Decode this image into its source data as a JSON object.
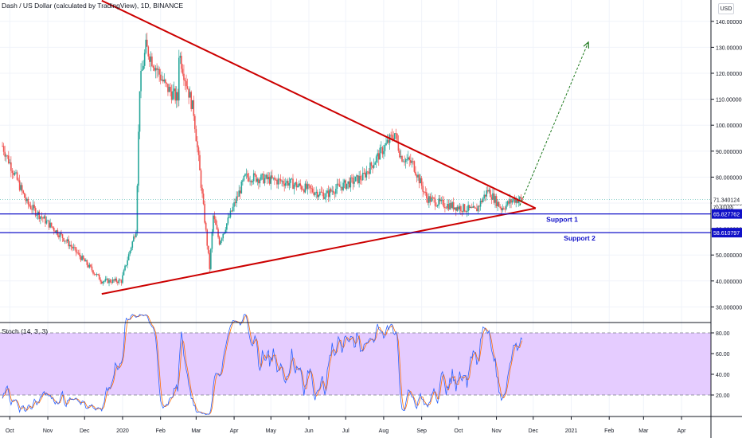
{
  "header": {
    "title": "Dash / US Dollar (calculated by TradingView), 1D, BINANCE",
    "currency_button": "USD"
  },
  "colors": {
    "up": "#26a69a",
    "down": "#ef5350",
    "triangle": "#cc0000",
    "support": "#1010c8",
    "arrow": "#1f7a1f",
    "stoch_band": "#e5ccff",
    "stoch_k": "#2962ff",
    "stoch_d": "#ff6d00"
  },
  "stoch": {
    "title": "Stoch (14, 3, 3)",
    "ticks": [
      "80.00",
      "60.00",
      "40.00",
      "20.00"
    ],
    "tick_values": [
      80,
      60,
      40,
      20
    ],
    "upper_band": 80,
    "lower_band": 20
  },
  "price_axis": {
    "ticks": [
      "140.000000",
      "130.000000",
      "120.000000",
      "110.000000",
      "100.000000",
      "90.000000",
      "80.000000",
      "70.000000",
      "60.000000",
      "50.000000",
      "40.000000",
      "30.000000"
    ],
    "last_price_label": "71.340124",
    "last_price_label2": "70.40165"
  },
  "supports": [
    {
      "name": "Support 1",
      "price_label": "65.827762",
      "value": 65.827762
    },
    {
      "name": "Support 2",
      "price_label": "58.610797",
      "value": 58.610797
    }
  ],
  "time_axis": [
    "Oct",
    "Nov",
    "Dec",
    "2020",
    "Feb",
    "Mar",
    "Apr",
    "May",
    "Jun",
    "Jul",
    "Aug",
    "Sep",
    "Oct",
    "Nov",
    "Dec",
    "2021",
    "Feb",
    "Mar",
    "Apr"
  ],
  "chart_data": {
    "type": "candlestick",
    "symbol": "DASH/USD",
    "interval": "1D",
    "ylim": [
      25,
      148
    ],
    "ylabel": "",
    "xlabel": "",
    "x_start": "2019-09-23",
    "x_end": "2021-04-25",
    "grid": true,
    "closes_by_month": [
      {
        "month": "2019-09",
        "close": 85
      },
      {
        "month": "2019-10",
        "close": 70
      },
      {
        "month": "2019-11",
        "close": 56
      },
      {
        "month": "2019-12",
        "close": 40
      },
      {
        "month": "2020-01",
        "close": 115
      },
      {
        "month": "2020-02",
        "close": 110
      },
      {
        "month": "2020-03",
        "close": 65
      },
      {
        "month": "2020-04",
        "close": 80
      },
      {
        "month": "2020-05",
        "close": 78
      },
      {
        "month": "2020-06",
        "close": 73
      },
      {
        "month": "2020-07",
        "close": 80
      },
      {
        "month": "2020-08",
        "close": 88
      },
      {
        "month": "2020-09",
        "close": 70
      },
      {
        "month": "2020-10",
        "close": 67
      },
      {
        "month": "2020-11",
        "close": 71.34
      }
    ],
    "price_range_shown": {
      "high": 145,
      "low": 31
    },
    "last_price": 71.340124,
    "triangle": {
      "upper_line": [
        {
          "date": "2019-12-15",
          "price": 148
        },
        {
          "date": "2020-12-03",
          "price": 68
        }
      ],
      "lower_line": [
        {
          "date": "2019-12-15",
          "price": 35
        },
        {
          "date": "2020-12-03",
          "price": 68
        }
      ]
    },
    "support_levels": [
      65.827762,
      58.610797
    ],
    "projection_arrow": {
      "from": {
        "date": "2020-11-20",
        "price": 69
      },
      "to": {
        "date": "2021-01-15",
        "price": 132
      }
    }
  }
}
